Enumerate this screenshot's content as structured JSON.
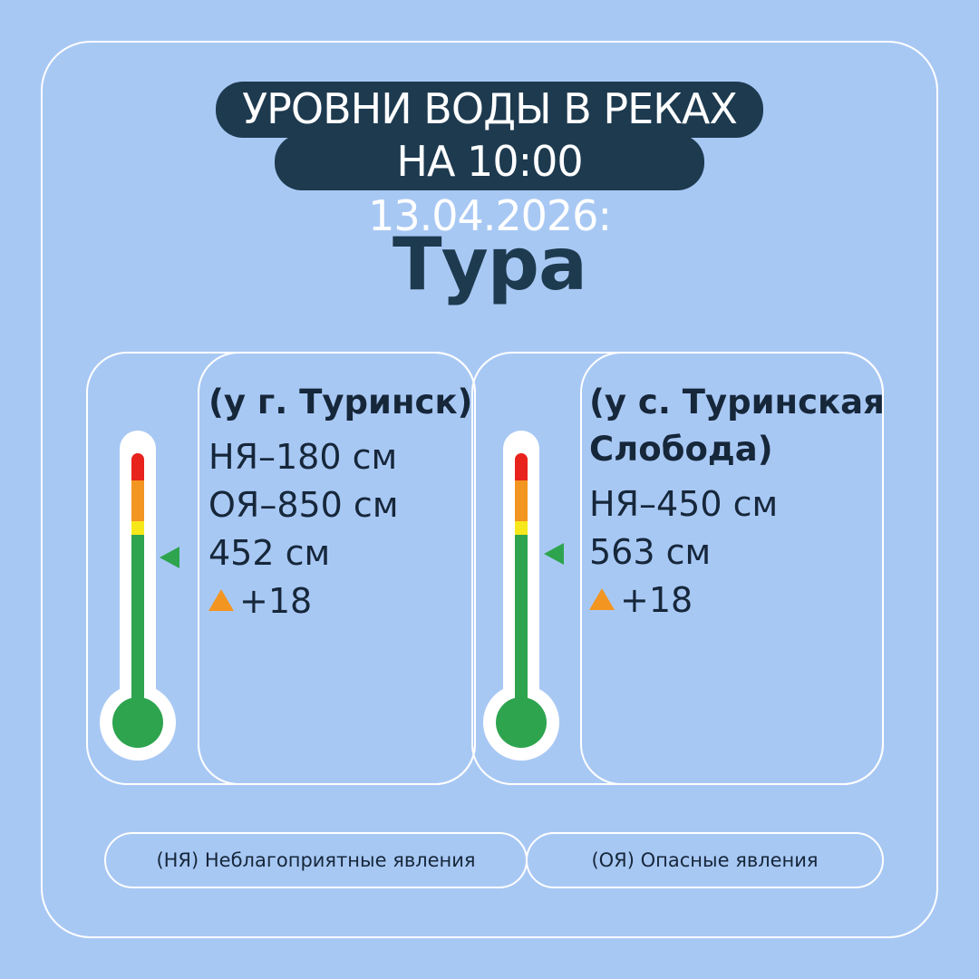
{
  "header": {
    "line1": "УРОВНИ ВОДЫ В РЕКАХ",
    "line2": "НА 10:00 13.04.2026:"
  },
  "river": "Тура",
  "colors": {
    "background": "#a8c8f4",
    "header_bg": "#1d3a4f",
    "danger": "#e8221c",
    "warning": "#f39521",
    "caution": "#f7e81c",
    "normal": "#2ea44f"
  },
  "stations": [
    {
      "name": "(у г. Туринск)",
      "lines": [
        "НЯ–180 см",
        "ОЯ–850 см",
        "452 см"
      ],
      "change": "+18",
      "change_icon": "triangle-up-icon"
    },
    {
      "name_lines": [
        "(у с. Туринская",
        "Слобода)"
      ],
      "lines": [
        "НЯ–450 см",
        "563 см"
      ],
      "change": "+18",
      "change_icon": "triangle-up-icon"
    }
  ],
  "legend": [
    "(НЯ) Неблагоприятные явления",
    "(ОЯ) Опасные явления"
  ]
}
